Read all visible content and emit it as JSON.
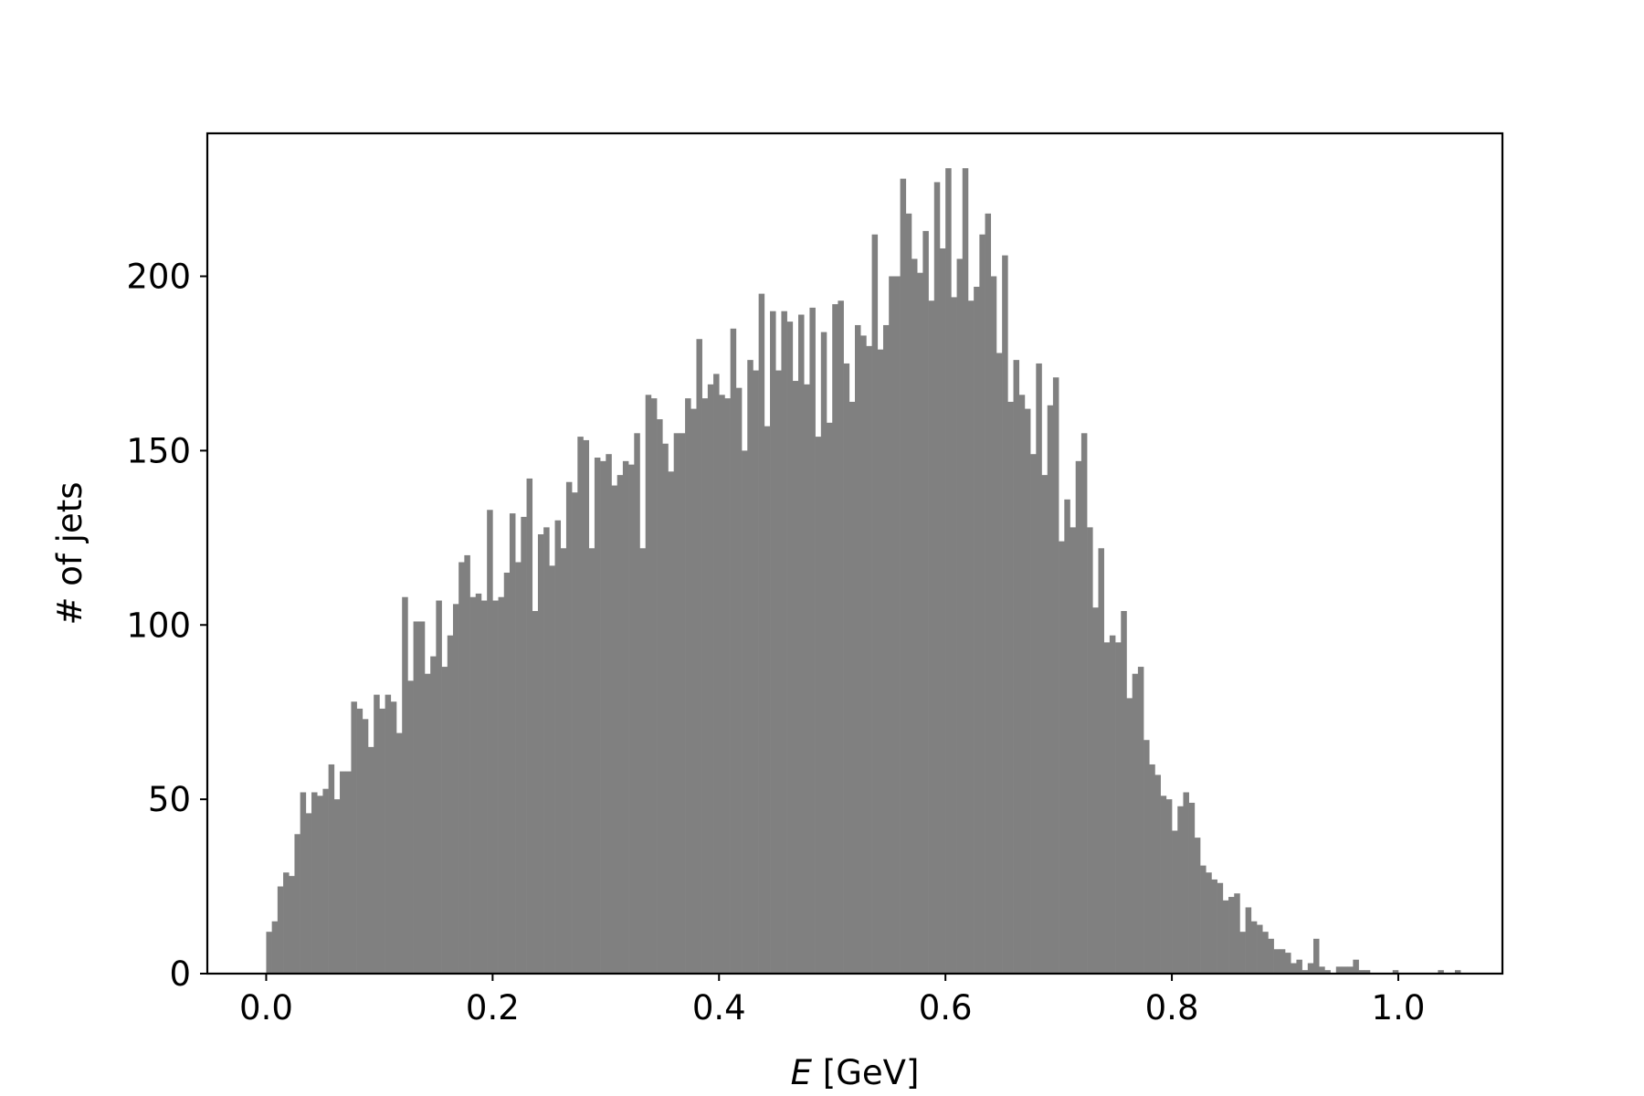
{
  "chart_data": {
    "type": "bar",
    "subtype": "histogram",
    "title": "",
    "xlabel_var": "E",
    "xlabel_unit": "[GeV]",
    "ylabel": "# of jets",
    "xlim": [
      -0.052,
      1.092
    ],
    "ylim": [
      0,
      241
    ],
    "grid": false,
    "legend": "none",
    "bar_color": "#808080",
    "x_ticks": [
      {
        "value": 0.0,
        "label": "0.0"
      },
      {
        "value": 0.2,
        "label": "0.2"
      },
      {
        "value": 0.4,
        "label": "0.4"
      },
      {
        "value": 0.6,
        "label": "0.6"
      },
      {
        "value": 0.8,
        "label": "0.8"
      },
      {
        "value": 1.0,
        "label": "1.0"
      }
    ],
    "y_ticks": [
      {
        "value": 0,
        "label": "0"
      },
      {
        "value": 50,
        "label": "50"
      },
      {
        "value": 100,
        "label": "100"
      },
      {
        "value": 150,
        "label": "150"
      },
      {
        "value": 200,
        "label": "200"
      }
    ],
    "bin_start": 0.0,
    "bin_width": 0.005,
    "counts": [
      12,
      15,
      25,
      29,
      28,
      40,
      52,
      46,
      52,
      51,
      53,
      60,
      50,
      58,
      58,
      78,
      76,
      73,
      65,
      80,
      76,
      80,
      78,
      69,
      108,
      84,
      101,
      101,
      86,
      91,
      107,
      88,
      97,
      106,
      118,
      120,
      108,
      109,
      107,
      133,
      107,
      108,
      115,
      132,
      118,
      131,
      142,
      104,
      126,
      128,
      117,
      130,
      122,
      141,
      138,
      154,
      153,
      122,
      148,
      147,
      149,
      140,
      143,
      147,
      146,
      155,
      122,
      166,
      165,
      159,
      152,
      144,
      155,
      155,
      165,
      162,
      182,
      165,
      169,
      172,
      166,
      165,
      185,
      168,
      150,
      176,
      173,
      195,
      157,
      190,
      173,
      190,
      187,
      170,
      189,
      169,
      191,
      154,
      184,
      158,
      192,
      193,
      175,
      164,
      186,
      183,
      180,
      212,
      179,
      186,
      200,
      200,
      228,
      218,
      205,
      201,
      213,
      193,
      227,
      208,
      231,
      194,
      205,
      231,
      193,
      197,
      212,
      218,
      200,
      178,
      206,
      164,
      176,
      166,
      162,
      149,
      175,
      143,
      163,
      171,
      124,
      136,
      128,
      147,
      155,
      128,
      105,
      122,
      95,
      97,
      95,
      104,
      79,
      86,
      88,
      67,
      60,
      57,
      51,
      50,
      41,
      48,
      52,
      49,
      39,
      31,
      29,
      27,
      26,
      21,
      22,
      23,
      12,
      19,
      15,
      14,
      12,
      10,
      7,
      7,
      6,
      3,
      4,
      1,
      3,
      10,
      2,
      1,
      0,
      2,
      2,
      2,
      4,
      1,
      1,
      0,
      0,
      0,
      0,
      1,
      0,
      0,
      0,
      0,
      0,
      0,
      0,
      1,
      0,
      0,
      1,
      0
    ]
  }
}
